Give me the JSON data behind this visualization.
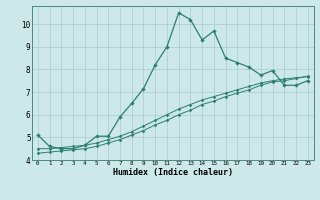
{
  "xlabel": "Humidex (Indice chaleur)",
  "background_color": "#cce8e8",
  "grid_color": "#b0d0d0",
  "line_color": "#2e7f70",
  "xlim": [
    -0.5,
    23.5
  ],
  "ylim": [
    4.0,
    10.8
  ],
  "yticks": [
    4,
    5,
    6,
    7,
    8,
    9,
    10
  ],
  "xticks": [
    0,
    1,
    2,
    3,
    4,
    5,
    6,
    7,
    8,
    9,
    10,
    11,
    12,
    13,
    14,
    15,
    16,
    17,
    18,
    19,
    20,
    21,
    22,
    23
  ],
  "line1_x": [
    0,
    1,
    2,
    3,
    4,
    5,
    6,
    7,
    8,
    9,
    10,
    11,
    12,
    13,
    14,
    15,
    16,
    17,
    18,
    19,
    20,
    21,
    22,
    23
  ],
  "line1_y": [
    5.1,
    4.6,
    4.5,
    4.5,
    4.65,
    5.05,
    5.05,
    5.9,
    6.5,
    7.15,
    8.2,
    9.0,
    10.5,
    10.2,
    9.3,
    9.7,
    8.5,
    8.3,
    8.1,
    7.75,
    7.95,
    7.3,
    7.3,
    7.5
  ],
  "line2_x": [
    0,
    1,
    2,
    3,
    4,
    5,
    6,
    7,
    8,
    9,
    10,
    11,
    12,
    13,
    14,
    15,
    16,
    17,
    18,
    19,
    20,
    21,
    22,
    23
  ],
  "line2_y": [
    4.3,
    4.35,
    4.4,
    4.45,
    4.5,
    4.6,
    4.75,
    4.9,
    5.1,
    5.3,
    5.55,
    5.75,
    6.0,
    6.2,
    6.45,
    6.6,
    6.8,
    6.95,
    7.1,
    7.3,
    7.45,
    7.5,
    7.6,
    7.7
  ],
  "line3_x": [
    0,
    1,
    2,
    3,
    4,
    5,
    6,
    7,
    8,
    9,
    10,
    11,
    12,
    13,
    14,
    15,
    16,
    17,
    18,
    19,
    20,
    21,
    22,
    23
  ],
  "line3_y": [
    4.5,
    4.5,
    4.55,
    4.6,
    4.65,
    4.75,
    4.9,
    5.05,
    5.25,
    5.5,
    5.75,
    6.0,
    6.25,
    6.45,
    6.65,
    6.8,
    6.95,
    7.1,
    7.25,
    7.4,
    7.5,
    7.58,
    7.63,
    7.68
  ]
}
